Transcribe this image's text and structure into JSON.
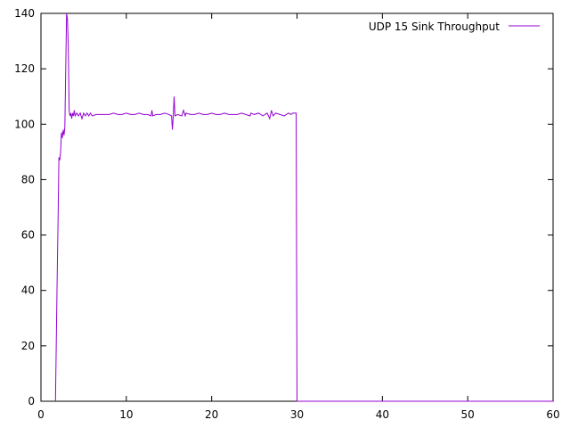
{
  "chart_data": {
    "type": "line",
    "title": "",
    "xlabel": "",
    "ylabel": "",
    "xlim": [
      0,
      60
    ],
    "ylim": [
      0,
      140
    ],
    "x_ticks": [
      0,
      10,
      20,
      30,
      40,
      50,
      60
    ],
    "y_ticks": [
      0,
      20,
      40,
      60,
      80,
      100,
      120,
      140
    ],
    "grid": false,
    "legend_position": "top-right",
    "series": [
      {
        "name": "UDP 15 Sink Throughput",
        "color": "#9400d3",
        "points": [
          [
            1.7,
            0
          ],
          [
            1.9,
            45
          ],
          [
            2.0,
            65
          ],
          [
            2.1,
            88
          ],
          [
            2.2,
            87
          ],
          [
            2.3,
            90
          ],
          [
            2.4,
            97
          ],
          [
            2.5,
            95
          ],
          [
            2.6,
            98
          ],
          [
            2.7,
            96
          ],
          [
            2.8,
            99
          ],
          [
            2.9,
            120
          ],
          [
            3.0,
            140
          ],
          [
            3.1,
            138
          ],
          [
            3.2,
            128
          ],
          [
            3.3,
            105
          ],
          [
            3.4,
            103
          ],
          [
            3.5,
            104
          ],
          [
            3.6,
            102
          ],
          [
            3.7,
            104
          ],
          [
            3.8,
            103
          ],
          [
            3.9,
            105
          ],
          [
            4.0,
            103
          ],
          [
            4.2,
            104
          ],
          [
            4.4,
            103
          ],
          [
            4.6,
            104
          ],
          [
            4.8,
            102
          ],
          [
            5.0,
            104
          ],
          [
            5.2,
            103
          ],
          [
            5.4,
            104
          ],
          [
            5.6,
            103
          ],
          [
            5.8,
            104
          ],
          [
            6.0,
            103
          ],
          [
            6.5,
            103.5
          ],
          [
            7,
            103.5
          ],
          [
            7.5,
            103.5
          ],
          [
            8,
            103.5
          ],
          [
            8.5,
            104
          ],
          [
            9,
            103.5
          ],
          [
            9.5,
            103.5
          ],
          [
            10,
            104
          ],
          [
            10.5,
            103.5
          ],
          [
            11,
            103.5
          ],
          [
            11.5,
            104
          ],
          [
            12,
            103.5
          ],
          [
            12.5,
            103.5
          ],
          [
            12.9,
            103
          ],
          [
            13.0,
            105
          ],
          [
            13.1,
            103
          ],
          [
            13.5,
            103.5
          ],
          [
            14,
            103.5
          ],
          [
            14.5,
            104
          ],
          [
            15.0,
            103.5
          ],
          [
            15.3,
            103
          ],
          [
            15.4,
            98
          ],
          [
            15.5,
            103
          ],
          [
            15.6,
            110
          ],
          [
            15.7,
            103
          ],
          [
            16,
            103.5
          ],
          [
            16.5,
            103
          ],
          [
            16.7,
            105
          ],
          [
            16.9,
            103
          ],
          [
            17,
            104
          ],
          [
            17.5,
            103.5
          ],
          [
            18,
            103.5
          ],
          [
            18.5,
            104
          ],
          [
            19,
            103.5
          ],
          [
            19.5,
            103.5
          ],
          [
            20,
            104
          ],
          [
            20.5,
            103.5
          ],
          [
            21,
            103.5
          ],
          [
            21.5,
            104
          ],
          [
            22,
            103.5
          ],
          [
            22.5,
            103.5
          ],
          [
            23,
            103.5
          ],
          [
            23.5,
            104
          ],
          [
            24,
            103.5
          ],
          [
            24.5,
            103
          ],
          [
            24.6,
            104
          ],
          [
            25,
            103.5
          ],
          [
            25.5,
            104
          ],
          [
            26,
            103
          ],
          [
            26.5,
            104
          ],
          [
            26.8,
            102
          ],
          [
            27.0,
            105
          ],
          [
            27.2,
            103
          ],
          [
            27.5,
            104
          ],
          [
            28,
            103.5
          ],
          [
            28.5,
            103
          ],
          [
            29,
            104
          ],
          [
            29.3,
            103.5
          ],
          [
            29.5,
            104
          ],
          [
            29.9,
            104
          ],
          [
            30.0,
            0
          ],
          [
            30.1,
            0
          ],
          [
            60,
            0
          ]
        ]
      }
    ]
  }
}
